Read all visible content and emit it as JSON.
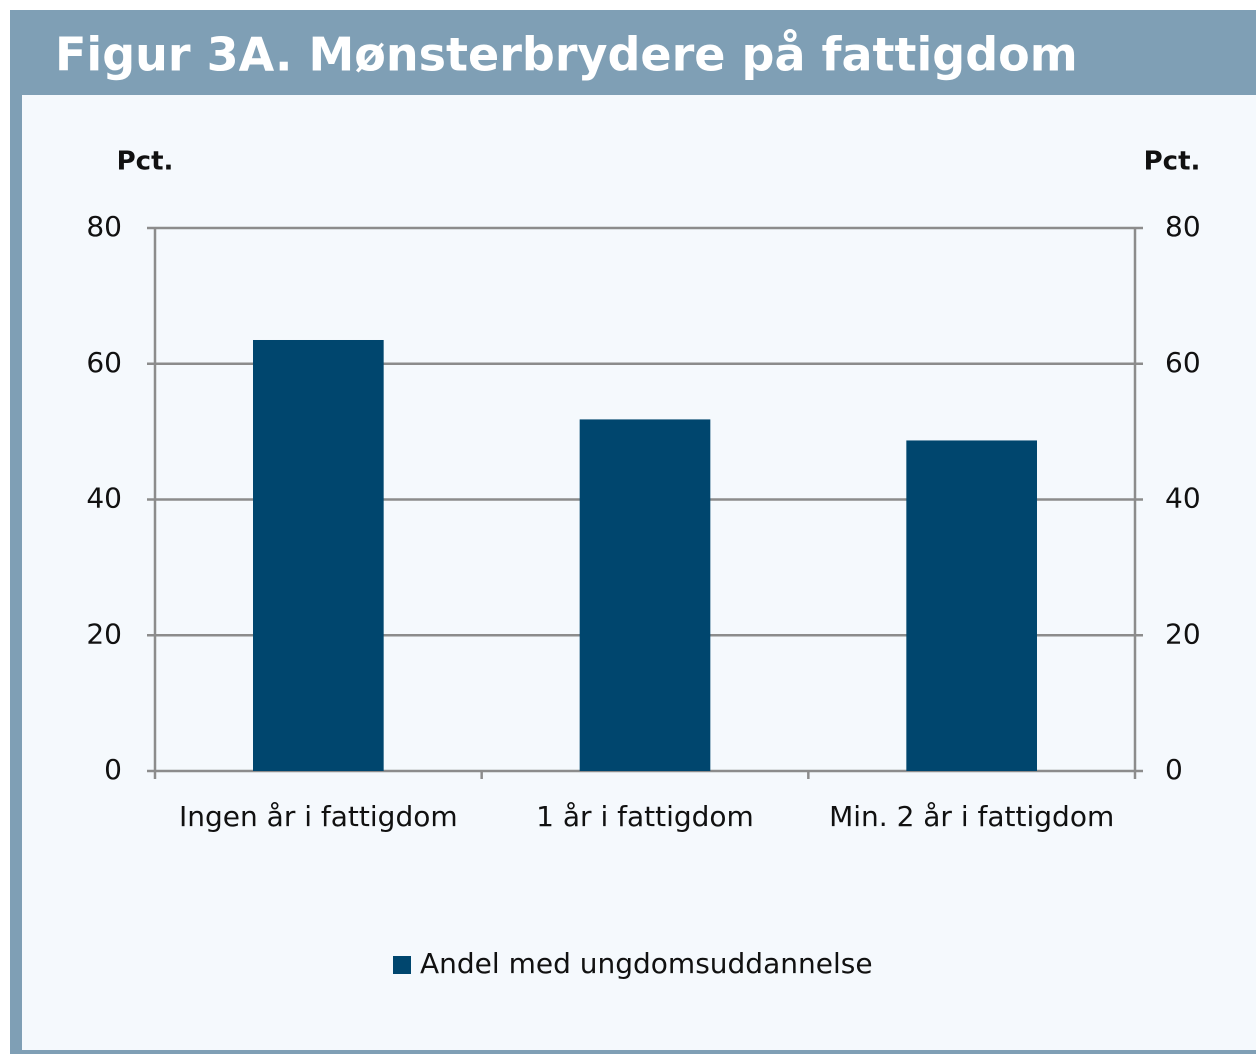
{
  "chart_data": {
    "type": "bar",
    "title": "Figur 3A. Mønsterbrydere på fattigdom",
    "y_label": "Pct.",
    "y2_label": "Pct.",
    "categories": [
      "Ingen år i fattigdom",
      "1 år i fattigdom",
      "Min. 2 år i fattigdom"
    ],
    "series": [
      {
        "name": "Andel med ungdomsuddannelse",
        "color": "#00466e",
        "values": [
          63.5,
          51.8,
          48.7
        ]
      }
    ],
    "ylim": [
      0,
      80
    ],
    "yticks": [
      0,
      20,
      40,
      60,
      80
    ],
    "y2lim": [
      0,
      80
    ],
    "y2ticks": [
      0,
      20,
      40,
      60,
      80
    ],
    "grid": true,
    "legend": "bottom"
  }
}
